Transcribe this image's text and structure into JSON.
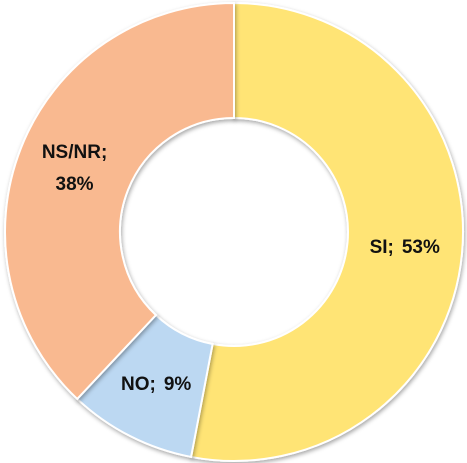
{
  "chart_data": {
    "type": "donut",
    "categories": [
      "SI",
      "NO",
      "NS/NR"
    ],
    "values": [
      53,
      9,
      38
    ],
    "value_labels": [
      "53%",
      "9%",
      "38%"
    ],
    "label_separator": ";",
    "colors": [
      "#FFE475",
      "#BCD8F2",
      "#F9B990"
    ]
  }
}
